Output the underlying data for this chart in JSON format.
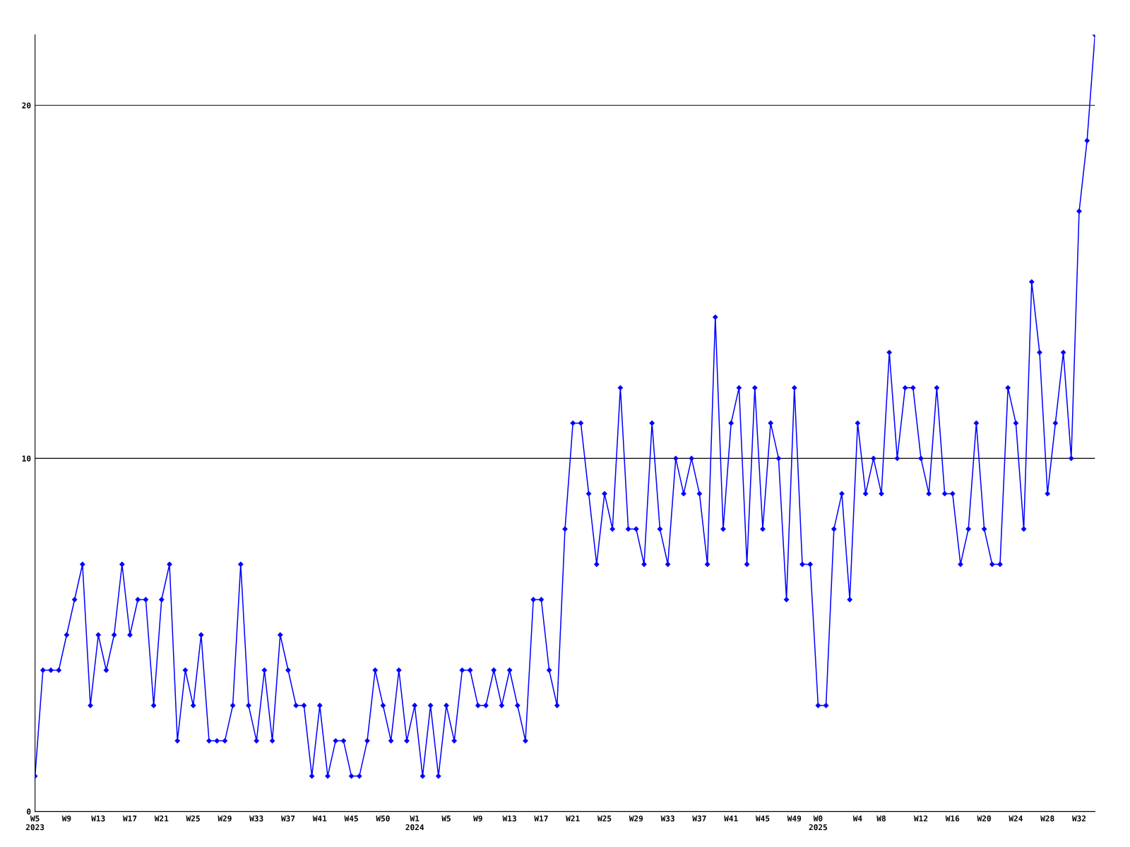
{
  "chart_data": {
    "type": "line",
    "categories": [
      "W5\n2023",
      null,
      null,
      null,
      "W9",
      null,
      null,
      null,
      "W13",
      null,
      null,
      null,
      "W17",
      null,
      null,
      null,
      "W21",
      null,
      null,
      null,
      "W25",
      null,
      null,
      null,
      "W29",
      null,
      null,
      null,
      "W33",
      null,
      null,
      null,
      "W37",
      null,
      null,
      null,
      "W41",
      null,
      null,
      null,
      "W45",
      null,
      null,
      null,
      "W50",
      null,
      null,
      null,
      "W1\n2024",
      null,
      null,
      null,
      "W5",
      null,
      null,
      null,
      "W9",
      null,
      null,
      null,
      "W13",
      null,
      null,
      null,
      "W17",
      null,
      null,
      null,
      "W21",
      null,
      null,
      null,
      "W25",
      null,
      null,
      null,
      "W29",
      null,
      null,
      null,
      "W33",
      null,
      null,
      null,
      "W37",
      null,
      null,
      null,
      "W41",
      null,
      null,
      null,
      "W45",
      null,
      null,
      null,
      "W49",
      null,
      null,
      "W0\n2025",
      null,
      null,
      null,
      null,
      "W4",
      null,
      null,
      "W8",
      null,
      null,
      null,
      null,
      "W12",
      null,
      null,
      null,
      "W16",
      null,
      null,
      null,
      "W20",
      null,
      null,
      null,
      "W24",
      null,
      null,
      null,
      "W28",
      null,
      null,
      null,
      "W32",
      null,
      null
    ],
    "series": [
      {
        "color": "#0000ff",
        "values": [
          1,
          4,
          4,
          4,
          5,
          6,
          7,
          3,
          5,
          4,
          5,
          7,
          5,
          6,
          6,
          3,
          6,
          7,
          2,
          4,
          3,
          5,
          2,
          2,
          2,
          3,
          7,
          3,
          2,
          4,
          2,
          5,
          4,
          3,
          3,
          1,
          3,
          1,
          2,
          2,
          1,
          1,
          2,
          4,
          3,
          2,
          4,
          2,
          3,
          1,
          3,
          1,
          3,
          2,
          4,
          4,
          3,
          3,
          4,
          3,
          4,
          3,
          2,
          6,
          6,
          4,
          3,
          8,
          11,
          11,
          9,
          7,
          9,
          8,
          12,
          8,
          8,
          7,
          11,
          8,
          7,
          10,
          9,
          10,
          9,
          7,
          14,
          8,
          11,
          12,
          7,
          12,
          8,
          11,
          10,
          6,
          12,
          7,
          7,
          3,
          3,
          8,
          9,
          6,
          11,
          9,
          10,
          9,
          13,
          10,
          12,
          12,
          10,
          9,
          12,
          9,
          9,
          7,
          8,
          11,
          8,
          7,
          7,
          12,
          11,
          8,
          15,
          13,
          9,
          11,
          13,
          10,
          17,
          19,
          22
        ]
      }
    ],
    "ylim": [
      0,
      22
    ],
    "yticks": [
      0,
      10,
      20
    ],
    "grid": "y",
    "marker": "diamond",
    "line_style": "solid"
  }
}
